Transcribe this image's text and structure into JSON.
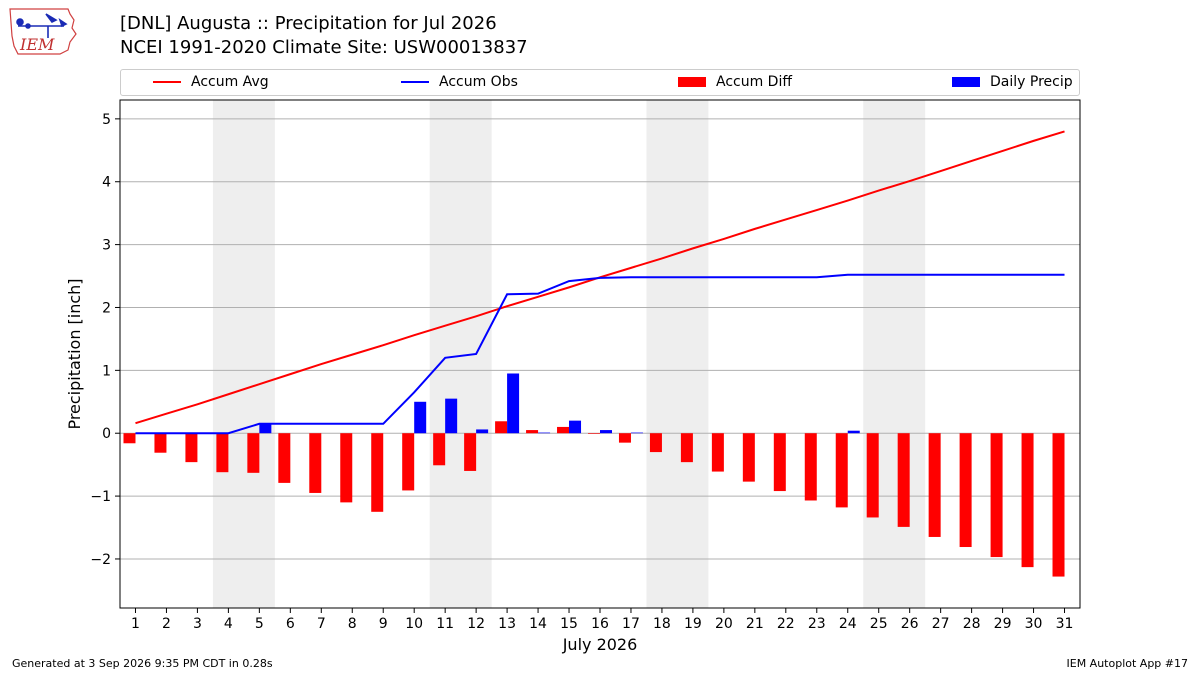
{
  "header": {
    "title_line1": "[DNL] Augusta :: Precipitation for Jul 2026",
    "title_line2": "NCEI 1991-2020 Climate Site: USW00013837"
  },
  "logo": {
    "text": "IEM",
    "icon": "iem-iowa-logo"
  },
  "legend": [
    {
      "label": "Accum Avg",
      "kind": "line",
      "color": "#ff0000"
    },
    {
      "label": "Accum Obs",
      "kind": "line",
      "color": "#0000ff"
    },
    {
      "label": "Accum Diff",
      "kind": "bar",
      "color": "#ff0000"
    },
    {
      "label": "Daily Precip",
      "kind": "bar",
      "color": "#0000ff"
    }
  ],
  "footer": {
    "left": "Generated at 3 Sep 2026 9:35 PM CDT in 0.28s",
    "right": "IEM Autoplot App #17"
  },
  "chart_data": {
    "type": "bar",
    "title": "[DNL] Augusta :: Precipitation for Jul 2026",
    "subtitle": "NCEI 1991-2020 Climate Site: USW00013837",
    "xlabel": "July 2026",
    "ylabel": "Precipitation [inch]",
    "ylim": [
      -2.78,
      5.3
    ],
    "xlim": [
      0.5,
      31.5
    ],
    "yticks": [
      -2,
      -1,
      0,
      1,
      2,
      3,
      4,
      5
    ],
    "ytick_labels": [
      "−2",
      "−1",
      "0",
      "1",
      "2",
      "3",
      "4",
      "5"
    ],
    "grid": "horizontal",
    "legend_position": "top",
    "weekend_shading": [
      [
        3.5,
        5.5
      ],
      [
        10.5,
        12.5
      ],
      [
        17.5,
        19.5
      ],
      [
        24.5,
        26.5
      ]
    ],
    "shading_color": "#eeeeee",
    "x": [
      1,
      2,
      3,
      4,
      5,
      6,
      7,
      8,
      9,
      10,
      11,
      12,
      13,
      14,
      15,
      16,
      17,
      18,
      19,
      20,
      21,
      22,
      23,
      24,
      25,
      26,
      27,
      28,
      29,
      30,
      31
    ],
    "series": [
      {
        "name": "Accum Avg",
        "kind": "line",
        "color": "#ff0000",
        "values": [
          0.16,
          0.31,
          0.46,
          0.62,
          0.78,
          0.94,
          1.1,
          1.25,
          1.4,
          1.56,
          1.71,
          1.86,
          2.02,
          2.17,
          2.32,
          2.48,
          2.63,
          2.78,
          2.94,
          3.09,
          3.25,
          3.4,
          3.55,
          3.7,
          3.86,
          4.01,
          4.17,
          4.33,
          4.49,
          4.65,
          4.8
        ]
      },
      {
        "name": "Accum Obs",
        "kind": "line",
        "color": "#0000ff",
        "values": [
          0.0,
          0.0,
          0.0,
          0.0,
          0.15,
          0.15,
          0.15,
          0.15,
          0.15,
          0.65,
          1.2,
          1.26,
          2.21,
          2.22,
          2.42,
          2.47,
          2.48,
          2.48,
          2.48,
          2.48,
          2.48,
          2.48,
          2.48,
          2.52,
          2.52,
          2.52,
          2.52,
          2.52,
          2.52,
          2.52,
          2.52
        ]
      },
      {
        "name": "Accum Diff",
        "kind": "bar",
        "color": "#ff0000",
        "values": [
          -0.16,
          -0.31,
          -0.46,
          -0.62,
          -0.63,
          -0.79,
          -0.95,
          -1.1,
          -1.25,
          -0.91,
          -0.51,
          -0.6,
          0.19,
          0.05,
          0.1,
          -0.01,
          -0.15,
          -0.3,
          -0.46,
          -0.61,
          -0.77,
          -0.92,
          -1.07,
          -1.18,
          -1.34,
          -1.49,
          -1.65,
          -1.81,
          -1.97,
          -2.13,
          -2.28
        ]
      },
      {
        "name": "Daily Precip",
        "kind": "bar",
        "color": "#0000ff",
        "values": [
          0,
          0,
          0,
          0,
          0.15,
          0,
          0,
          0,
          0,
          0.5,
          0.55,
          0.06,
          0.95,
          0.01,
          0.2,
          0.05,
          0.01,
          0,
          0,
          0,
          0,
          0,
          0,
          0.04,
          0,
          0,
          0,
          0,
          0,
          0,
          0
        ]
      }
    ]
  }
}
